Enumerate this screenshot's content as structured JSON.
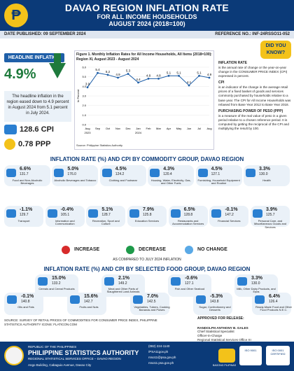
{
  "header": {
    "title": "DAVAO REGION INFLATION RATE",
    "subtitle": "FOR ALL INCOME HOUSEHOLDS",
    "period": "AUGUST 2024 (2018=100)",
    "logo_glyph": "₱"
  },
  "meta": {
    "date_published": "DATE PUBLISHED: 09 SEPTEMBER 2024",
    "reference_no": "REFERENCE NO.: INF-24RSSO11-052"
  },
  "headline": {
    "badge": "HEADLINE INFLATION",
    "rate": "4.9%",
    "text": "The headline inflation in the region eased down to 4.9 percent in August 2024 from 5.1 percent in July 2024.",
    "cpi_value": "128.6 CPI",
    "ppp_value": "0.78 PPP"
  },
  "did_you_know": "DID YOU KNOW?",
  "chart_data": {
    "type": "line",
    "title": "Figure 1. Monthly Inflation Rates for All Income Households, All Items (2018=100): Region XI, August 2023 - August 2024",
    "ylabel": "In Percent",
    "ylim": [
      0,
      6
    ],
    "categories": [
      "Aug 2023",
      "Sep",
      "Oct",
      "Nov",
      "Dec",
      "Jan 2024",
      "Feb",
      "Mar",
      "Apr",
      "May",
      "Jun",
      "Jul",
      "Aug"
    ],
    "tick_labels": [
      "Aug",
      "Sep",
      "Oct",
      "Nov",
      "Dec",
      "Jan",
      "Feb",
      "Mar",
      "Apr",
      "May",
      "Jun",
      "Jul",
      "Aug"
    ],
    "year_labels": [
      "2023",
      "2024"
    ],
    "values": [
      3.9,
      5.4,
      5.2,
      4.9,
      5.3,
      4.4,
      4.8,
      4.8,
      5.1,
      5.1,
      4.1,
      5.1,
      4.9
    ],
    "source": "Source: Philippine Statistics Authority",
    "line_color": "#1f5fa8"
  },
  "definitions": {
    "inflation_head": "INFLATION RATE",
    "inflation_body": "is the annual rate of change or the year-on-year change in the CONSUMER PRICE INDEX (CPI) expressed in percent.",
    "cpi_head": "CPI",
    "cpi_body": "is an indicator of the change in the average retail prices of a fixed basket of goods and services commonly purchased by households relative to a base year. The CPI for All Income Households was rebased from Base Year 2012 to Base Year 2018.",
    "ppp_head": "PURCHASING POWER OF PESO (PPP)",
    "ppp_body": "is a measure of the real value of peso in a given period relative to a chosen reference period. It is computed by getting the reciprocal of the CPI and multiplying the result by 100."
  },
  "commodity": {
    "title": "INFLATION RATE (%) AND CPI BY COMMODITY GROUP, DAVAO REGION",
    "items": [
      {
        "rate": "6.6%",
        "cpi": "131.7",
        "label": "Food and Non-Alcoholic Beverages"
      },
      {
        "rate": "5.0%",
        "cpi": "176.0",
        "label": "Alcoholic Beverages and Tobacco"
      },
      {
        "rate": "4.5%",
        "cpi": "124.2",
        "label": "Clothing and Footwear"
      },
      {
        "rate": "4.3%",
        "cpi": "120.4",
        "label": "Housing, Water, Electricity, Gas, and Other Fuels"
      },
      {
        "rate": "4.5%",
        "cpi": "127.1",
        "label": "Furnishing, Household Equipment and Routine"
      },
      {
        "rate": "3.3%",
        "cpi": "130.0",
        "label": "Health"
      },
      {
        "rate": "-1.1%",
        "cpi": "129.7",
        "label": "Transport"
      },
      {
        "rate": "-0.4%",
        "cpi": "105.1",
        "label": "Information and Communication"
      },
      {
        "rate": "5.1%",
        "cpi": "128.7",
        "label": "Recreation, Sport and Culture"
      },
      {
        "rate": "7.9%",
        "cpi": "125.8",
        "label": "Education Services"
      },
      {
        "rate": "6.5%",
        "cpi": "128.8",
        "label": "Restaurants and Accommodation Services"
      },
      {
        "rate": "-0.1%",
        "cpi": "147.2",
        "label": "Financial Services"
      },
      {
        "rate": "3.9%",
        "cpi": "125.7",
        "label": "Personal Care, and Miscellaneous Goods and Services"
      }
    ]
  },
  "legend": {
    "increase": "INCREASE",
    "decrease": "DECREASE",
    "no_change": "NO CHANGE",
    "increase_color": "#d72b2b",
    "decrease_color": "#1e9a4a",
    "no_change_color": "#5aa9e6",
    "note": "AS COMPARED TO JULY 2024 INFLATION"
  },
  "food": {
    "title": "INFLATION RATE (%) AND CPI BY SELECTED FOOD GROUP, DAVAO REGION",
    "items": [
      {
        "rate": "15.0%",
        "cpi": "133.2",
        "label": "Cereals and Cereal Products"
      },
      {
        "rate": "2.1%",
        "cpi": "149.2",
        "label": "Meat and Other Parts of Slaughtered Land Animals"
      },
      {
        "rate": "-0.6%",
        "cpi": "127.1",
        "label": "Fish and Other Seafood"
      },
      {
        "rate": "3.3%",
        "cpi": "130.0",
        "label": "Milk, Other Dairy Products, and Eggs"
      },
      {
        "rate": "-0.1%",
        "cpi": "140.8",
        "label": "Oils and Fats"
      },
      {
        "rate": "15.6%",
        "cpi": "142.7",
        "label": "Fruits and Nuts"
      },
      {
        "rate": "7.0%",
        "cpi": "142.5",
        "label": "Vegetables, Tubers, Cooking Bananas and Pulses"
      },
      {
        "rate": "-5.3%",
        "cpi": "143.8",
        "label": "Sugar, Confectionery and Desserts"
      },
      {
        "rate": "6.4%",
        "cpi": "126.4",
        "label": "Ready-Made Food and Other Food Products N.E.C."
      }
    ]
  },
  "source_note": "SOURCE: SURVEY OF RETAIL PRICES OF COMMODITIES FOR CONSUMER PRICE INDEX, PHILIPPINE STATISTICS AUTHORITY ICONS: FLATICON.COM",
  "approval": {
    "heading": "APPROVED FOR RELEASE:",
    "name": "RANDOLPH ANTHONY B. GALES",
    "position": "Chief Statistical Specialist",
    "role": "Officer-in-Charge",
    "office": "Regional Statistical Services Office XI"
  },
  "footer": {
    "republic": "REPUBLIC OF THE PHILIPPINES",
    "psa": "PHILIPPINE STATISTICS AUTHORITY",
    "office": "REGIONAL STATISTICAL SERVICES OFFICE – DAVAO REGION",
    "address": "Ango Building, Cabaguio Avenue, Davao City",
    "contacts": [
      "(082) 224-1140",
      "/PSA11gov.ph",
      "rsso11@psa.gov.ph",
      "rsso11.psa.gov.ph"
    ],
    "bagong_pilipinas": "BAGONG PILIPINAS",
    "iso1": "ISO 9001",
    "iso2": "ISO 0001 CERTIFIED"
  }
}
